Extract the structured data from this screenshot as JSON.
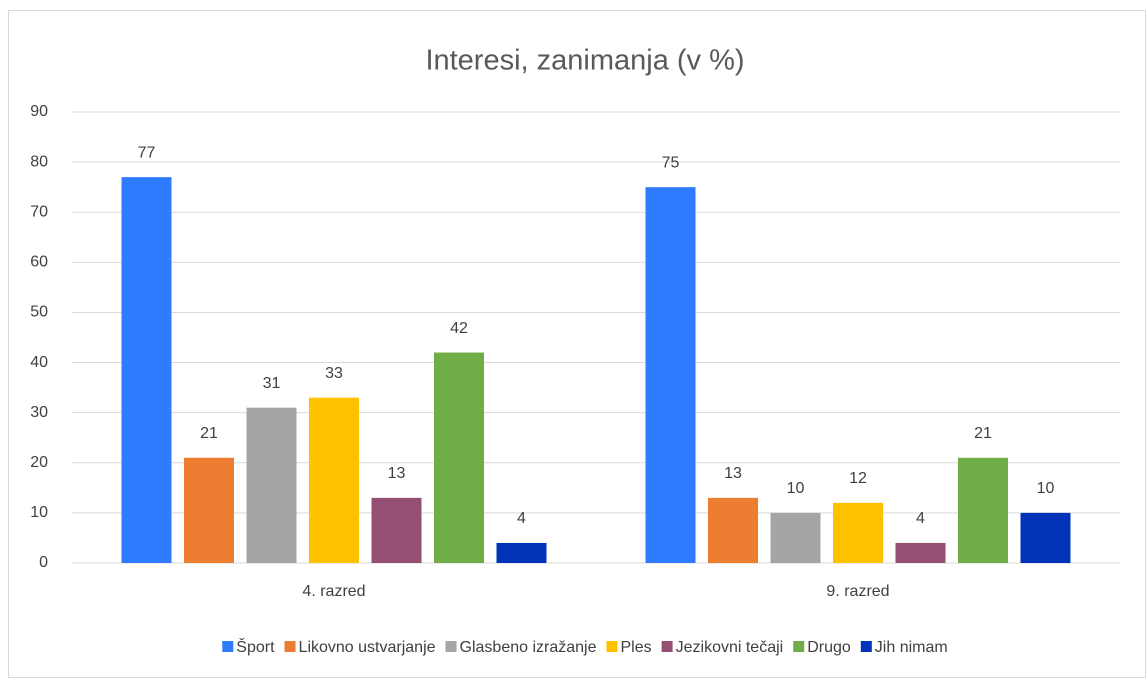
{
  "chart_data": {
    "type": "bar",
    "title": "Interesi, zanimanja (v %)",
    "categories": [
      "4. razred",
      "9. razred"
    ],
    "series": [
      {
        "name": "Šport",
        "color": "#2f7bff",
        "values": [
          77,
          75
        ]
      },
      {
        "name": "Likovno ustvarjanje",
        "color": "#ed7d31",
        "values": [
          21,
          13
        ]
      },
      {
        "name": "Glasbeno izražanje",
        "color": "#a5a5a5",
        "values": [
          31,
          10
        ]
      },
      {
        "name": "Ples",
        "color": "#ffc000",
        "values": [
          33,
          12
        ]
      },
      {
        "name": "Jezikovni tečaji",
        "color": "#954f72",
        "values": [
          13,
          4
        ]
      },
      {
        "name": "Drugo",
        "color": "#70ad47",
        "values": [
          42,
          21
        ]
      },
      {
        "name": "Jih nimam",
        "color": "#0033b8",
        "values": [
          4,
          10
        ]
      }
    ],
    "ylim": [
      0,
      90
    ],
    "yticks": [
      0,
      10,
      20,
      30,
      40,
      50,
      60,
      70,
      80,
      90
    ],
    "grid": true,
    "legend": "bottom"
  }
}
